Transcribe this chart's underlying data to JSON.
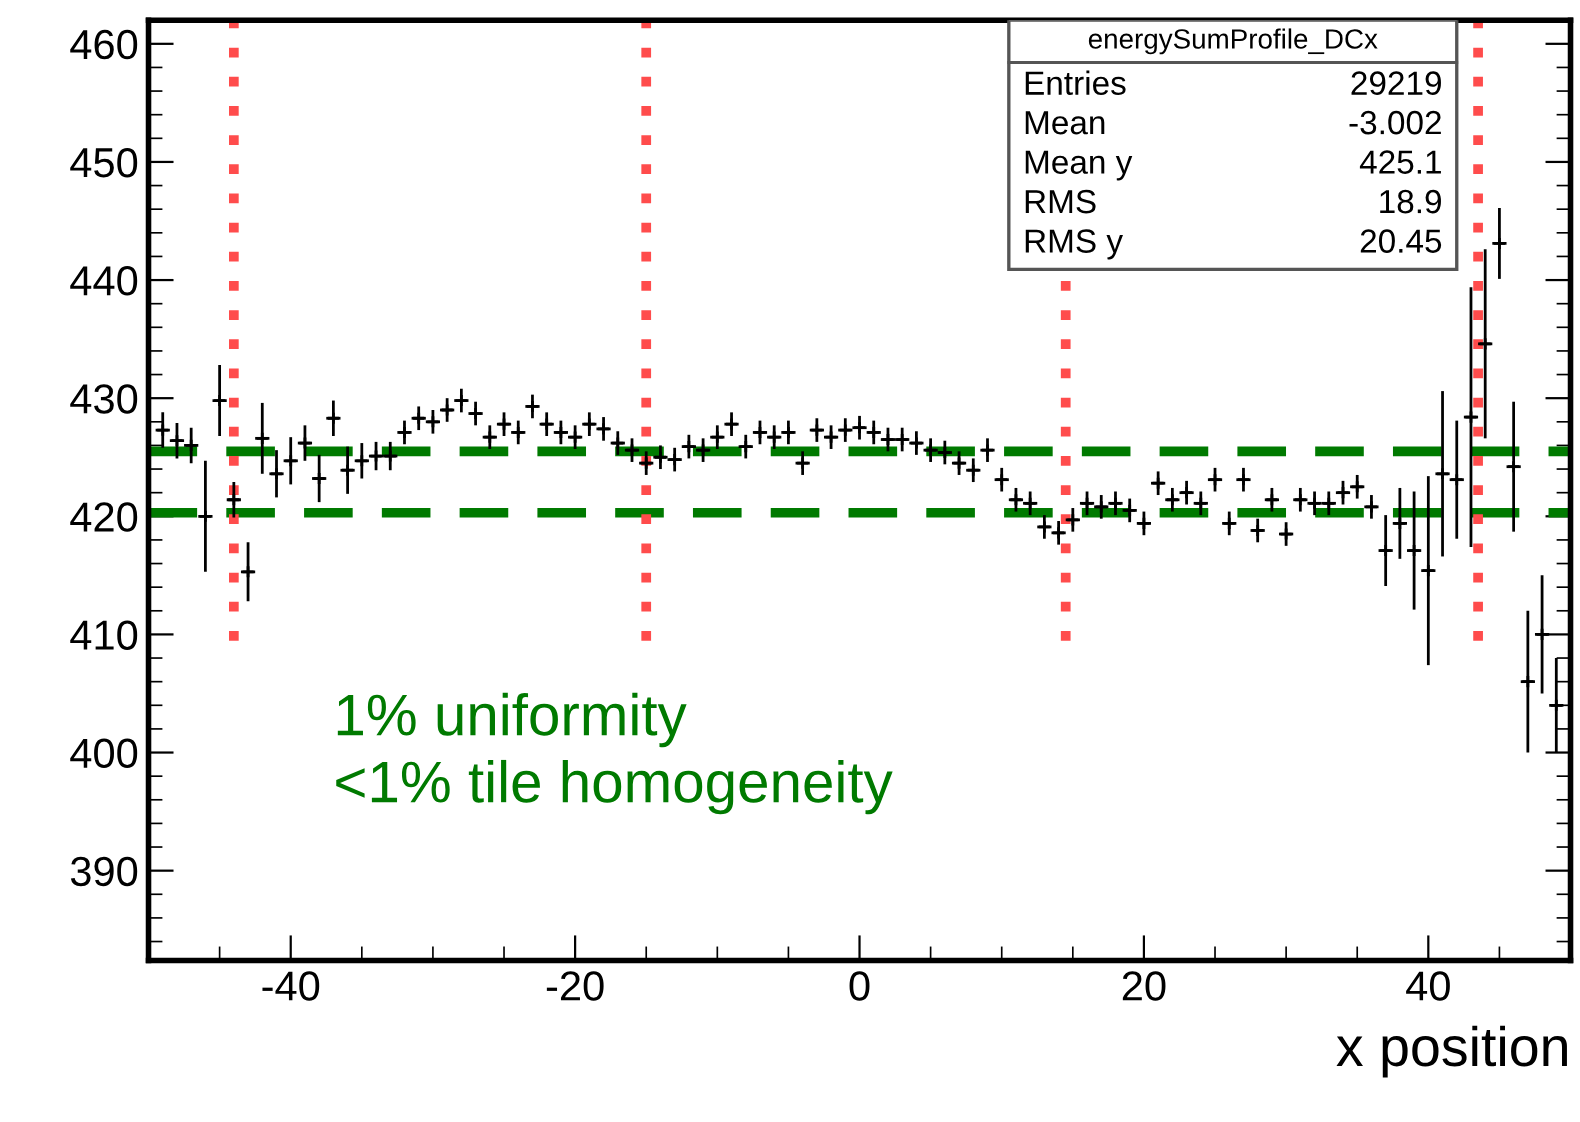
{
  "chart_data": {
    "type": "scatter",
    "xlabel": "x position",
    "x": [
      -49,
      -48,
      -47,
      -46,
      -45,
      -44,
      -43,
      -42,
      -41,
      -40,
      -39,
      -38,
      -37,
      -36,
      -35,
      -34,
      -33,
      -32,
      -31,
      -30,
      -29,
      -28,
      -27,
      -26,
      -25,
      -24,
      -23,
      -22,
      -21,
      -20,
      -19,
      -18,
      -17,
      -16,
      -15,
      -14,
      -13,
      -12,
      -11,
      -10,
      -9,
      -8,
      -7,
      -6,
      -5,
      -4,
      -3,
      -2,
      -1,
      0,
      1,
      2,
      3,
      4,
      5,
      6,
      7,
      8,
      9,
      10,
      11,
      12,
      13,
      14,
      15,
      16,
      17,
      18,
      19,
      20,
      21,
      22,
      23,
      24,
      25,
      26,
      27,
      28,
      29,
      30,
      31,
      32,
      33,
      34,
      35,
      36,
      37,
      38,
      39,
      40,
      41,
      42,
      43,
      44,
      45,
      46,
      47,
      48,
      49
    ],
    "series": [
      {
        "color": "#000000",
        "values": [
          427.3,
          426.4,
          426.0,
          420.0,
          429.8,
          421.4,
          415.3,
          426.6,
          423.6,
          424.7,
          426.2,
          423.2,
          428.3,
          423.9,
          424.7,
          425.1,
          425.1,
          427.1,
          428.3,
          428.0,
          429.0,
          429.8,
          428.7,
          426.7,
          427.8,
          427.1,
          429.3,
          427.8,
          427.1,
          426.7,
          427.8,
          427.4,
          426.2,
          425.6,
          424.5,
          425.0,
          424.8,
          425.9,
          425.6,
          426.7,
          427.8,
          425.9,
          427.1,
          426.7,
          427.1,
          424.5,
          427.3,
          426.7,
          427.3,
          427.5,
          427.1,
          426.5,
          426.5,
          426.2,
          425.6,
          425.4,
          424.5,
          423.9,
          425.6,
          423.1,
          421.4,
          421.1,
          419.1,
          418.6,
          419.7,
          421.1,
          420.8,
          421.1,
          420.5,
          419.4,
          422.8,
          421.4,
          422.0,
          421.1,
          423.1,
          419.4,
          423.1,
          418.8,
          421.4,
          418.5,
          421.4,
          421.1,
          421.1,
          422.0,
          422.5,
          420.8,
          417.1,
          419.4,
          417.1,
          415.4,
          423.6,
          423.1,
          428.4,
          434.6,
          443.1,
          424.2,
          406.0,
          410.0,
          404.0
        ],
        "errors": [
          1.5,
          1.5,
          1.5,
          4.7,
          3,
          1.5,
          2.5,
          3,
          2,
          2,
          1.5,
          2,
          1.5,
          2,
          1.5,
          1.2,
          1.2,
          1,
          1,
          1,
          1,
          1,
          1,
          1,
          1,
          1,
          1,
          1,
          1,
          1,
          1,
          1,
          1,
          1,
          1,
          1,
          1,
          1,
          1,
          1,
          1,
          1,
          1,
          1,
          1,
          1,
          1,
          1,
          1,
          1,
          1,
          1,
          1,
          1,
          1,
          1,
          1,
          1,
          1,
          1,
          1,
          1,
          1,
          1,
          1,
          1,
          1,
          1,
          1,
          1,
          1,
          1,
          1,
          1,
          1,
          1,
          1,
          1,
          1,
          1,
          1,
          1,
          1,
          1,
          1,
          1,
          3,
          3,
          5,
          8,
          7,
          5,
          11,
          8,
          3,
          5.5,
          6,
          5,
          4
        ],
        "xerrors": [
          0.5,
          0.5,
          0.5,
          0.5,
          0.5,
          0.5,
          0.5,
          0.5,
          0.5,
          0.5,
          0.5,
          0.5,
          0.5,
          0.5,
          0.5,
          0.5,
          0.5,
          0.5,
          0.5,
          0.5,
          0.5,
          0.5,
          0.5,
          0.5,
          0.5,
          0.5,
          0.5,
          0.5,
          0.5,
          0.5,
          0.5,
          0.5,
          0.5,
          0.5,
          0.5,
          0.5,
          0.5,
          0.5,
          0.5,
          0.5,
          0.5,
          0.5,
          0.5,
          0.5,
          0.5,
          0.5,
          0.5,
          0.5,
          0.5,
          0.5,
          0.5,
          0.5,
          0.5,
          0.5,
          0.5,
          0.5,
          0.5,
          0.5,
          0.5,
          0.5,
          0.5,
          0.5,
          0.5,
          0.5,
          0.5,
          0.5,
          0.5,
          0.5,
          0.5,
          0.5,
          0.5,
          0.5,
          0.5,
          0.5,
          0.5,
          0.5,
          0.5,
          0.5,
          0.5,
          0.5,
          0.5,
          0.5,
          0.5,
          0.5,
          0.5,
          0.5,
          0.5,
          0.5,
          0.5,
          0.5,
          0.5,
          0.5,
          0.5,
          0.5,
          0.5,
          0.5,
          0.5,
          0.5,
          0.5
        ]
      }
    ],
    "marker": "cross",
    "xlim": [
      -50,
      50
    ],
    "ylim": [
      382.4,
      462
    ],
    "xticks": [
      -40,
      -20,
      0,
      20,
      40
    ],
    "yticks": [
      390,
      400,
      410,
      420,
      430,
      440,
      450,
      460
    ],
    "grid": false,
    "ref_lines": [
      {
        "axis": "y",
        "value": 425.5,
        "color": "#007a00",
        "line_style": "dashed"
      },
      {
        "axis": "y",
        "value": 420.3,
        "color": "#007a00",
        "line_style": "dashed"
      },
      {
        "axis": "x",
        "value": -44,
        "color": "#ff4c4c",
        "line_style": "dotted"
      },
      {
        "axis": "x",
        "value": -15,
        "color": "#ff4c4c",
        "line_style": "dotted"
      },
      {
        "axis": "x",
        "value": 14.5,
        "color": "#ff4c4c",
        "line_style": "dotted"
      },
      {
        "axis": "x",
        "value": 43.5,
        "color": "#ff4c4c",
        "line_style": "dotted"
      }
    ],
    "annotations": [
      "energySumProfile_DCx",
      "Entries",
      "29219",
      "Mean",
      "-3.002",
      "Mean y",
      "425.1",
      "RMS",
      "18.9",
      "RMS y",
      "20.45",
      "1% uniformity\n<1% tile homogeneity"
    ]
  }
}
